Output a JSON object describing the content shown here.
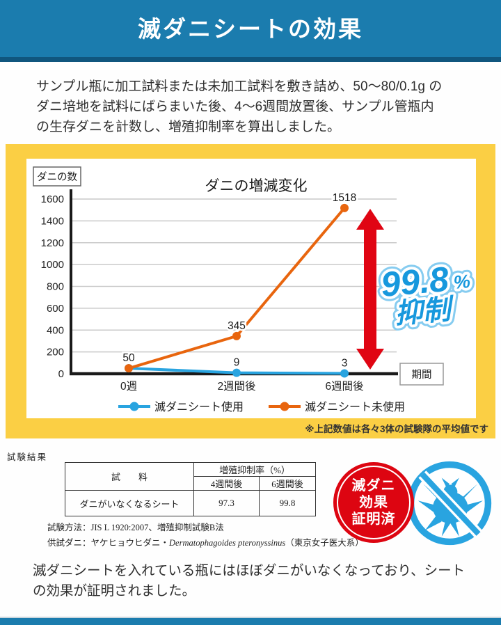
{
  "header": {
    "title": "滅ダニシートの効果"
  },
  "intro": {
    "lines": [
      "サンプル瓶に加工試料または未加工試料を敷き詰め、50〜80/0.1g の",
      "ダニ培地を試料にばらまいた後、4〜6週間放置後、サンプル管瓶内",
      "の生存ダニを計数し、増殖抑制率を算出しました。"
    ]
  },
  "chart_data": {
    "type": "line",
    "title": "ダニの増減変化",
    "y_axis_box_label": "ダニの数",
    "x_axis_box_label": "期間",
    "categories": [
      "0週",
      "2週間後",
      "6週間後"
    ],
    "series": [
      {
        "name": "滅ダニシート使用",
        "color": "#29a4e0",
        "values": [
          50,
          9,
          3
        ]
      },
      {
        "name": "滅ダニシート未使用",
        "color": "#e8650e",
        "values": [
          50,
          345,
          1518
        ]
      }
    ],
    "ylim": [
      0,
      1600
    ],
    "y_tick_step": 200,
    "grid": true,
    "legend_position": "bottom-inside",
    "annotation": {
      "value": "99.8",
      "unit": "%",
      "label": "抑制"
    }
  },
  "chart_note": "※上記数値は各々3体の試験隊の平均値です",
  "results": {
    "section_label": "試験結果",
    "table": {
      "sample_header": "試　　料",
      "rate_header": "増殖抑制率（%）",
      "col_4w": "4週間後",
      "col_6w": "6週間後",
      "row_name": "ダニがいなくなるシート",
      "val_4w": "97.3",
      "val_6w": "99.8"
    },
    "method": "試験方法：JIS L 1920:2007、増殖抑制試験B法",
    "mite_prefix": "供試ダニ：ヤケヒョウヒダニ・",
    "mite_species": "Dermatophagoides pteronyssinus",
    "mite_suffix": "（東京女子医大系）"
  },
  "proof_badge": {
    "lines": [
      "滅ダニ",
      "効果",
      "証明済"
    ]
  },
  "conclusion": {
    "lines": [
      "滅ダニシートを入れている瓶にはほぼダニがいなくなっており、シート",
      "の効果が証明されました。"
    ]
  },
  "colors": {
    "header_blue": "#1b7cae",
    "header_strip_blue": "#10567e",
    "frame_yellow": "#fbcf44",
    "arrow_red": "#e00513",
    "annotation_blue": "#1798dd",
    "badge_red": "#dd0511",
    "mite_icon_blue": "#29a4e0"
  }
}
